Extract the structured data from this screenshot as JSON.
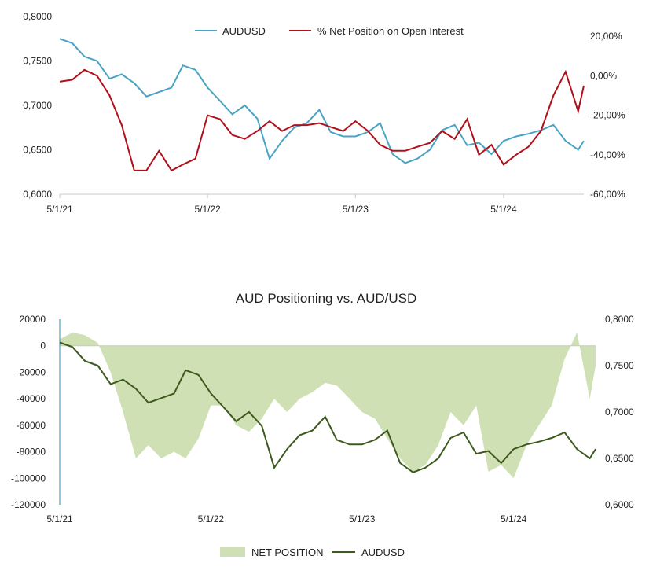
{
  "colors": {
    "audusd_top": "#4aa3c4",
    "net_pct": "#b0101a",
    "net_area": "#cfe0b4",
    "audusd_bottom": "#3e5a1e",
    "axis": "#c8c8c8"
  },
  "chart_data": [
    {
      "type": "line",
      "title": "",
      "legend_position": "top",
      "x_ticks": [
        "5/1/21",
        "5/1/22",
        "5/1/23",
        "5/1/24"
      ],
      "y_left": {
        "range": [
          0.6,
          0.8
        ],
        "ticks": [
          "0,6000",
          "0,6500",
          "0,7000",
          "0,7500",
          "0,8000"
        ]
      },
      "y_right": {
        "range": [
          -60,
          30
        ],
        "ticks": [
          "-60,00%",
          "-40,00%",
          "-20,00%",
          "0,00%",
          "20,00%"
        ]
      },
      "x_range": [
        "2021-05-01",
        "2024-11-15"
      ],
      "series": [
        {
          "name": "AUDUSD",
          "axis": "left",
          "x": [
            "2021-05-01",
            "2021-06-01",
            "2021-07-01",
            "2021-08-01",
            "2021-09-01",
            "2021-10-01",
            "2021-11-01",
            "2021-12-01",
            "2022-01-01",
            "2022-02-01",
            "2022-03-01",
            "2022-04-01",
            "2022-05-01",
            "2022-06-01",
            "2022-07-01",
            "2022-08-01",
            "2022-09-01",
            "2022-10-01",
            "2022-11-01",
            "2022-12-01",
            "2023-01-01",
            "2023-02-01",
            "2023-03-01",
            "2023-04-01",
            "2023-05-01",
            "2023-06-01",
            "2023-07-01",
            "2023-08-01",
            "2023-09-01",
            "2023-10-01",
            "2023-11-01",
            "2023-12-01",
            "2024-01-01",
            "2024-02-01",
            "2024-03-01",
            "2024-04-01",
            "2024-05-01",
            "2024-06-01",
            "2024-07-01",
            "2024-08-01",
            "2024-09-01",
            "2024-10-01",
            "2024-11-01",
            "2024-11-15"
          ],
          "y": [
            0.775,
            0.77,
            0.755,
            0.75,
            0.73,
            0.735,
            0.725,
            0.71,
            0.715,
            0.72,
            0.745,
            0.74,
            0.72,
            0.705,
            0.69,
            0.7,
            0.685,
            0.64,
            0.66,
            0.675,
            0.68,
            0.695,
            0.67,
            0.665,
            0.665,
            0.67,
            0.68,
            0.645,
            0.635,
            0.64,
            0.65,
            0.672,
            0.678,
            0.655,
            0.658,
            0.645,
            0.66,
            0.665,
            0.668,
            0.672,
            0.678,
            0.66,
            0.65,
            0.66
          ]
        },
        {
          "name": "% Net Position on Open Interest",
          "axis": "right",
          "x": [
            "2021-05-01",
            "2021-06-01",
            "2021-07-01",
            "2021-08-01",
            "2021-09-01",
            "2021-10-01",
            "2021-11-01",
            "2021-12-01",
            "2022-01-01",
            "2022-02-01",
            "2022-03-01",
            "2022-04-01",
            "2022-05-01",
            "2022-06-01",
            "2022-07-01",
            "2022-08-01",
            "2022-09-01",
            "2022-10-01",
            "2022-11-01",
            "2022-12-01",
            "2023-01-01",
            "2023-02-01",
            "2023-03-01",
            "2023-04-01",
            "2023-05-01",
            "2023-06-01",
            "2023-07-01",
            "2023-08-01",
            "2023-09-01",
            "2023-10-01",
            "2023-11-01",
            "2023-12-01",
            "2024-01-01",
            "2024-02-01",
            "2024-03-01",
            "2024-04-01",
            "2024-05-01",
            "2024-06-01",
            "2024-07-01",
            "2024-08-01",
            "2024-09-01",
            "2024-10-01",
            "2024-11-01",
            "2024-11-15"
          ],
          "y": [
            -3,
            -2,
            3,
            0,
            -10,
            -25,
            -48,
            -48,
            -38,
            -48,
            -45,
            -42,
            -20,
            -22,
            -30,
            -32,
            -28,
            -23,
            -28,
            -25,
            -25,
            -24,
            -26,
            -28,
            -23,
            -28,
            -35,
            -38,
            -38,
            -36,
            -34,
            -28,
            -32,
            -22,
            -40,
            -35,
            -45,
            -40,
            -36,
            -28,
            -10,
            2,
            -18,
            -5
          ]
        }
      ]
    },
    {
      "type": "area",
      "title": "AUD Positioning vs. AUD/USD",
      "legend_position": "bottom",
      "x_ticks": [
        "5/1/21",
        "5/1/22",
        "5/1/23",
        "5/1/24"
      ],
      "y_left": {
        "range": [
          -120000,
          20000
        ],
        "ticks": [
          "-120000",
          "-100000",
          "-80000",
          "-60000",
          "-40000",
          "-20000",
          "0",
          "20000"
        ]
      },
      "y_right": {
        "range": [
          0.6,
          0.8
        ],
        "ticks": [
          "0,6000",
          "0,6500",
          "0,7000",
          "0,7500",
          "0,8000"
        ]
      },
      "x_range": [
        "2021-05-01",
        "2024-11-15"
      ],
      "series": [
        {
          "name": "NET POSITION",
          "axis": "left",
          "x": [
            "2021-05-01",
            "2021-06-01",
            "2021-07-01",
            "2021-08-01",
            "2021-09-01",
            "2021-10-01",
            "2021-11-01",
            "2021-12-01",
            "2022-01-01",
            "2022-02-01",
            "2022-03-01",
            "2022-04-01",
            "2022-05-01",
            "2022-06-01",
            "2022-07-01",
            "2022-08-01",
            "2022-09-01",
            "2022-10-01",
            "2022-11-01",
            "2022-12-01",
            "2023-01-01",
            "2023-02-01",
            "2023-03-01",
            "2023-04-01",
            "2023-05-01",
            "2023-06-01",
            "2023-07-01",
            "2023-08-01",
            "2023-09-01",
            "2023-10-01",
            "2023-11-01",
            "2023-12-01",
            "2024-01-01",
            "2024-02-01",
            "2024-03-01",
            "2024-04-01",
            "2024-05-01",
            "2024-06-01",
            "2024-07-01",
            "2024-08-01",
            "2024-09-01",
            "2024-10-01",
            "2024-11-01",
            "2024-11-15"
          ],
          "y": [
            5000,
            10000,
            8000,
            2000,
            -20000,
            -50000,
            -85000,
            -75000,
            -85000,
            -80000,
            -85000,
            -70000,
            -45000,
            -45000,
            -60000,
            -65000,
            -55000,
            -40000,
            -50000,
            -40000,
            -35000,
            -28000,
            -30000,
            -40000,
            -50000,
            -55000,
            -70000,
            -85000,
            -95000,
            -90000,
            -75000,
            -50000,
            -60000,
            -45000,
            -95000,
            -90000,
            -100000,
            -75000,
            -60000,
            -45000,
            -10000,
            10000,
            -40000,
            -15000
          ]
        },
        {
          "name": "AUDUSD",
          "axis": "right",
          "x": [
            "2021-05-01",
            "2021-06-01",
            "2021-07-01",
            "2021-08-01",
            "2021-09-01",
            "2021-10-01",
            "2021-11-01",
            "2021-12-01",
            "2022-01-01",
            "2022-02-01",
            "2022-03-01",
            "2022-04-01",
            "2022-05-01",
            "2022-06-01",
            "2022-07-01",
            "2022-08-01",
            "2022-09-01",
            "2022-10-01",
            "2022-11-01",
            "2022-12-01",
            "2023-01-01",
            "2023-02-01",
            "2023-03-01",
            "2023-04-01",
            "2023-05-01",
            "2023-06-01",
            "2023-07-01",
            "2023-08-01",
            "2023-09-01",
            "2023-10-01",
            "2023-11-01",
            "2023-12-01",
            "2024-01-01",
            "2024-02-01",
            "2024-03-01",
            "2024-04-01",
            "2024-05-01",
            "2024-06-01",
            "2024-07-01",
            "2024-08-01",
            "2024-09-01",
            "2024-10-01",
            "2024-11-01",
            "2024-11-15"
          ],
          "y": [
            0.775,
            0.77,
            0.755,
            0.75,
            0.73,
            0.735,
            0.725,
            0.71,
            0.715,
            0.72,
            0.745,
            0.74,
            0.72,
            0.705,
            0.69,
            0.7,
            0.685,
            0.64,
            0.66,
            0.675,
            0.68,
            0.695,
            0.67,
            0.665,
            0.665,
            0.67,
            0.68,
            0.645,
            0.635,
            0.64,
            0.65,
            0.672,
            0.678,
            0.655,
            0.658,
            0.645,
            0.66,
            0.665,
            0.668,
            0.672,
            0.678,
            0.66,
            0.65,
            0.66
          ]
        }
      ]
    }
  ]
}
